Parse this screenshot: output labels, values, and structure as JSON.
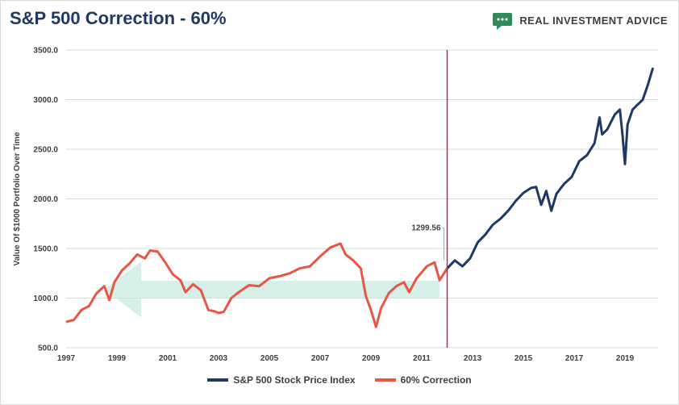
{
  "header": {
    "title": "S&P 500 Correction - 60%",
    "brand_name": "REAL INVESTMENT ADVICE",
    "brand_icon": "chat-bubble-icon",
    "brand_color": "#2e8b57"
  },
  "chart_data": {
    "type": "line",
    "title": "S&P 500 Correction - 60%",
    "xlabel": "",
    "ylabel": "Value Of $1000 Portfolio Over Time",
    "xlim": [
      1997,
      2020.3
    ],
    "ylim": [
      500,
      3500
    ],
    "yticks": [
      "500.0",
      "1000.0",
      "1500.0",
      "2000.0",
      "2500.0",
      "3000.0",
      "3500.0"
    ],
    "xticks": [
      "1997",
      "1999",
      "2001",
      "2003",
      "2005",
      "2007",
      "2009",
      "2011",
      "2013",
      "2015",
      "2017",
      "2019"
    ],
    "grid": "horizontal",
    "legend_position": "bottom",
    "series": [
      {
        "name": "S&P 500 Stock Price Index",
        "color": "#1f3864",
        "x": [
          2012.0,
          2012.3,
          2012.6,
          2012.9,
          2013.2,
          2013.5,
          2013.8,
          2014.1,
          2014.4,
          2014.7,
          2015.0,
          2015.3,
          2015.5,
          2015.7,
          2015.9,
          2016.1,
          2016.3,
          2016.6,
          2016.9,
          2017.2,
          2017.5,
          2017.8,
          2018.0,
          2018.1,
          2018.3,
          2018.6,
          2018.8,
          2018.9,
          2019.0,
          2019.1,
          2019.3,
          2019.5,
          2019.7,
          2019.9,
          2020.1
        ],
        "values": [
          1299.56,
          1380,
          1320,
          1400,
          1560,
          1640,
          1740,
          1800,
          1880,
          1980,
          2060,
          2110,
          2120,
          1940,
          2080,
          1880,
          2050,
          2150,
          2220,
          2380,
          2440,
          2560,
          2820,
          2650,
          2700,
          2850,
          2900,
          2650,
          2350,
          2750,
          2900,
          2950,
          3000,
          3150,
          3320
        ]
      },
      {
        "name": "60% Correction",
        "color": "#e85545",
        "x": [
          1997.0,
          1997.3,
          1997.6,
          1997.9,
          1998.2,
          1998.5,
          1998.7,
          1998.9,
          1999.2,
          1999.5,
          1999.8,
          2000.1,
          2000.3,
          2000.6,
          2000.9,
          2001.2,
          2001.5,
          2001.7,
          2002.0,
          2002.3,
          2002.6,
          2002.8,
          2003.0,
          2003.2,
          2003.5,
          2003.8,
          2004.2,
          2004.6,
          2005.0,
          2005.4,
          2005.8,
          2006.2,
          2006.6,
          2007.0,
          2007.4,
          2007.8,
          2008.0,
          2008.3,
          2008.6,
          2008.8,
          2009.0,
          2009.2,
          2009.4,
          2009.7,
          2010.0,
          2010.3,
          2010.5,
          2010.8,
          2011.2,
          2011.5,
          2011.7,
          2012.0
        ],
        "values": [
          760,
          780,
          880,
          920,
          1050,
          1120,
          980,
          1160,
          1280,
          1350,
          1440,
          1400,
          1480,
          1470,
          1360,
          1240,
          1180,
          1060,
          1140,
          1080,
          880,
          870,
          850,
          860,
          1000,
          1060,
          1130,
          1120,
          1200,
          1220,
          1250,
          1300,
          1320,
          1420,
          1510,
          1550,
          1440,
          1380,
          1300,
          1020,
          880,
          710,
          900,
          1050,
          1120,
          1160,
          1060,
          1200,
          1320,
          1360,
          1180,
          1299.56
        ]
      }
    ],
    "annotations": [
      {
        "text": "1299.56",
        "x": 2012.0,
        "y": 1299.56
      }
    ],
    "reference_line": {
      "x": 2012.0,
      "color": "#8b3a62"
    },
    "arrow_overlay": {
      "from_x": 2011.7,
      "to_x": 1998.5,
      "y_low": 1000,
      "y_high": 1175,
      "color": "#c8ebe1"
    }
  }
}
